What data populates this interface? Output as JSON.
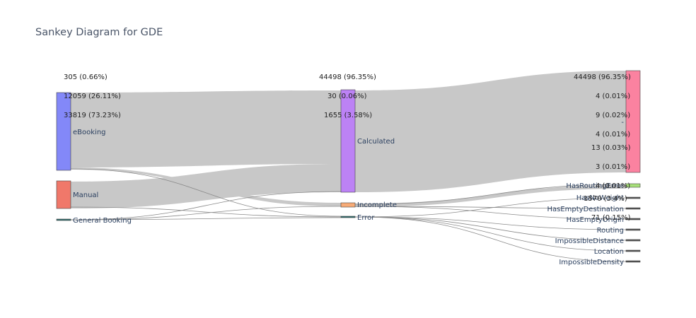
{
  "title": "Sankey Diagram for GDE",
  "colors": {
    "link": "#c8c8c8",
    "thin_link": "#8a8a8a",
    "node_stroke": "#444444",
    "node_label": "#2a3f5f"
  },
  "nodes": [
    {
      "id": "ebooking",
      "label": "eBooking",
      "color": "#8388f8"
    },
    {
      "id": "manual",
      "label": "Manual",
      "color": "#f0786a"
    },
    {
      "id": "general",
      "label": "General Booking",
      "color": "#2f6f70"
    },
    {
      "id": "calculated",
      "label": "Calculated",
      "color": "#bc82f5"
    },
    {
      "id": "incomplete",
      "label": "Incomplete",
      "color": "#f7ab77"
    },
    {
      "id": "error",
      "label": "Error",
      "color": "#2f6f70"
    },
    {
      "id": "dash",
      "label": "-",
      "color": "#fb82a0"
    },
    {
      "id": "hasrouting",
      "label": "HasRoutingError",
      "color": "#a8e07a"
    },
    {
      "id": "hasnoweight",
      "label": "HasNoWeight",
      "color": "#555555"
    },
    {
      "id": "hasemptydest",
      "label": "HasEmptyDestination",
      "color": "#555555"
    },
    {
      "id": "hasemptyorigin",
      "label": "HasEmptyOrigin",
      "color": "#555555"
    },
    {
      "id": "routing",
      "label": "Routing",
      "color": "#555555"
    },
    {
      "id": "impdistance",
      "label": "ImpossibleDistance",
      "color": "#555555"
    },
    {
      "id": "location",
      "label": "Location",
      "color": "#555555"
    },
    {
      "id": "impdensity",
      "label": "ImpossibleDensity",
      "color": "#555555"
    }
  ],
  "annotations": [
    {
      "text": "305 (0.66%)"
    },
    {
      "text": "12059 (26.11%)"
    },
    {
      "text": "33819 (73.23%)"
    },
    {
      "text": "44498 (96.35%)"
    },
    {
      "text": "30 (0.06%)"
    },
    {
      "text": "1655 (3.58%)"
    },
    {
      "text": "44498 (96.35%)"
    },
    {
      "text": "4 (0.01%)"
    },
    {
      "text": "9 (0.02%)"
    },
    {
      "text": "4 (0.01%)"
    },
    {
      "text": "13 (0.03%)"
    },
    {
      "text": "3 (0.01%)"
    },
    {
      "text": "4 (0.01%)"
    },
    {
      "text": "1570 (3.4%)"
    },
    {
      "text": "71 (0.15%)"
    }
  ]
}
